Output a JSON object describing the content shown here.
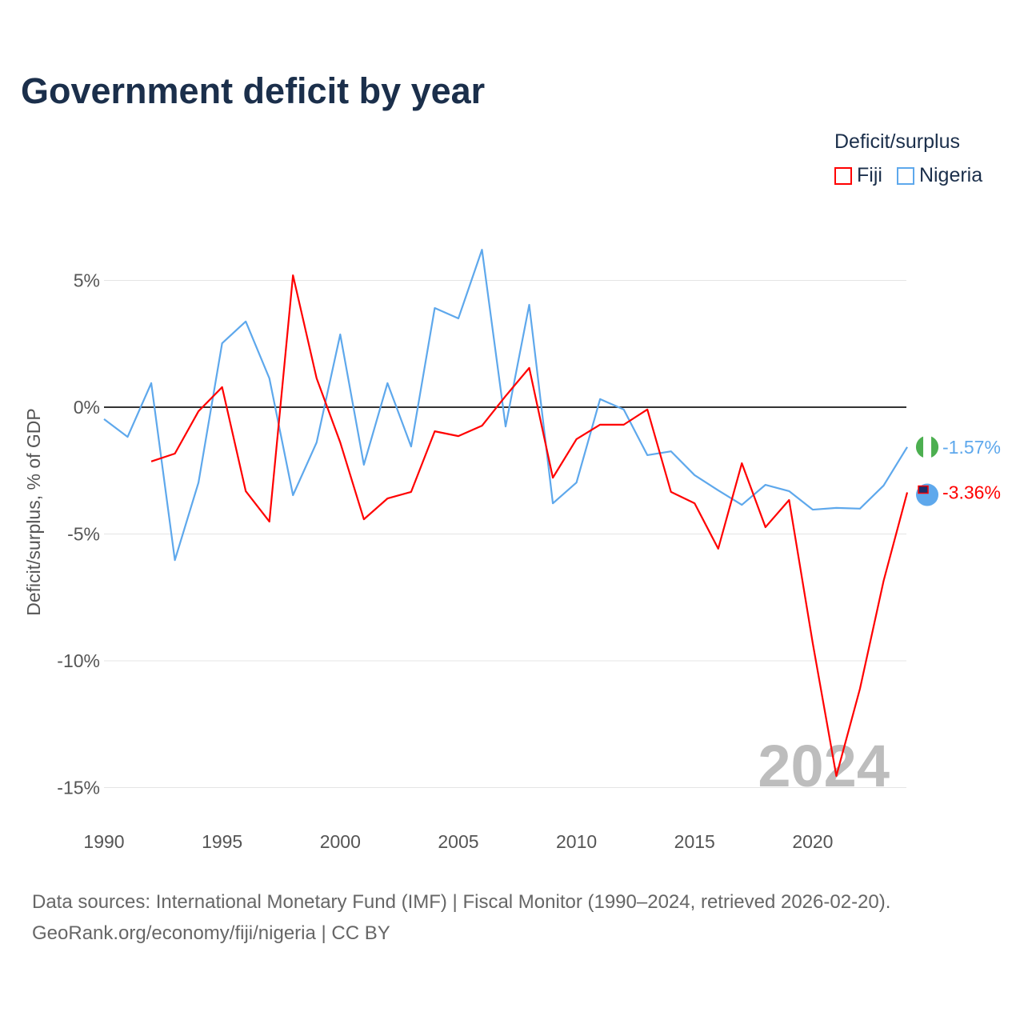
{
  "title": "Government deficit by year",
  "legend": {
    "title": "Deficit/surplus",
    "items": [
      {
        "label": "Fiji",
        "color": "#ff0000"
      },
      {
        "label": "Nigeria",
        "color": "#5ea8ec"
      }
    ]
  },
  "source_line1": "Data sources: International Monetary Fund (IMF) | Fiscal Monitor (1990–2024, retrieved 2026-02-20).",
  "source_line2": "GeoRank.org/economy/fiji/nigeria | CC BY",
  "chart_data": {
    "type": "line",
    "title": "Government deficit by year",
    "xlabel": "",
    "ylabel": "Deficit/surplus, % of GDP",
    "xlim": [
      1990,
      2024
    ],
    "ylim": [
      -15,
      6.5
    ],
    "x_ticks": [
      1990,
      1995,
      2000,
      2005,
      2010,
      2015,
      2020
    ],
    "y_ticks": [
      {
        "v": 5,
        "label": "5%"
      },
      {
        "v": 0,
        "label": "0%"
      },
      {
        "v": -5,
        "label": "-5%"
      },
      {
        "v": -10,
        "label": "-10%"
      },
      {
        "v": -15,
        "label": "-15%"
      }
    ],
    "watermark_year": "2024",
    "series": [
      {
        "name": "Fiji",
        "color": "#ff0000",
        "end_label": "-3.36%",
        "x": [
          1992,
          1993,
          1994,
          1995,
          1996,
          1997,
          1998,
          1999,
          2000,
          2001,
          2002,
          2003,
          2004,
          2005,
          2006,
          2007,
          2008,
          2009,
          2010,
          2011,
          2012,
          2013,
          2014,
          2015,
          2016,
          2017,
          2018,
          2019,
          2020,
          2021,
          2022,
          2023,
          2024
        ],
        "values": [
          -2.14,
          -1.83,
          -0.16,
          0.79,
          -3.31,
          -4.51,
          5.2,
          1.14,
          -1.39,
          -4.42,
          -3.6,
          -3.34,
          -0.95,
          -1.14,
          -0.73,
          0.44,
          1.55,
          -2.78,
          -1.26,
          -0.69,
          -0.69,
          -0.09,
          -3.34,
          -3.79,
          -5.58,
          -2.21,
          -4.73,
          -3.66,
          -9.3,
          -14.54,
          -11.1,
          -6.85,
          -3.36
        ]
      },
      {
        "name": "Nigeria",
        "color": "#5ea8ec",
        "end_label": "-1.57%",
        "x": [
          1990,
          1991,
          1992,
          1993,
          1994,
          1995,
          1996,
          1997,
          1998,
          1999,
          2000,
          2001,
          2002,
          2003,
          2004,
          2005,
          2006,
          2007,
          2008,
          2009,
          2010,
          2011,
          2012,
          2013,
          2014,
          2015,
          2016,
          2017,
          2018,
          2019,
          2020,
          2021,
          2022,
          2023,
          2024
        ],
        "values": [
          -0.47,
          -1.17,
          0.95,
          -6.03,
          -2.97,
          2.52,
          3.38,
          1.14,
          -3.47,
          -1.39,
          2.87,
          -2.27,
          0.95,
          -1.55,
          3.91,
          3.5,
          6.21,
          -0.76,
          4.04,
          -3.79,
          -2.97,
          0.32,
          -0.09,
          -1.89,
          -1.74,
          -2.68,
          -3.28,
          -3.85,
          -3.06,
          -3.31,
          -4.04,
          -3.97,
          -4.0,
          -3.09,
          -1.57
        ]
      }
    ]
  }
}
